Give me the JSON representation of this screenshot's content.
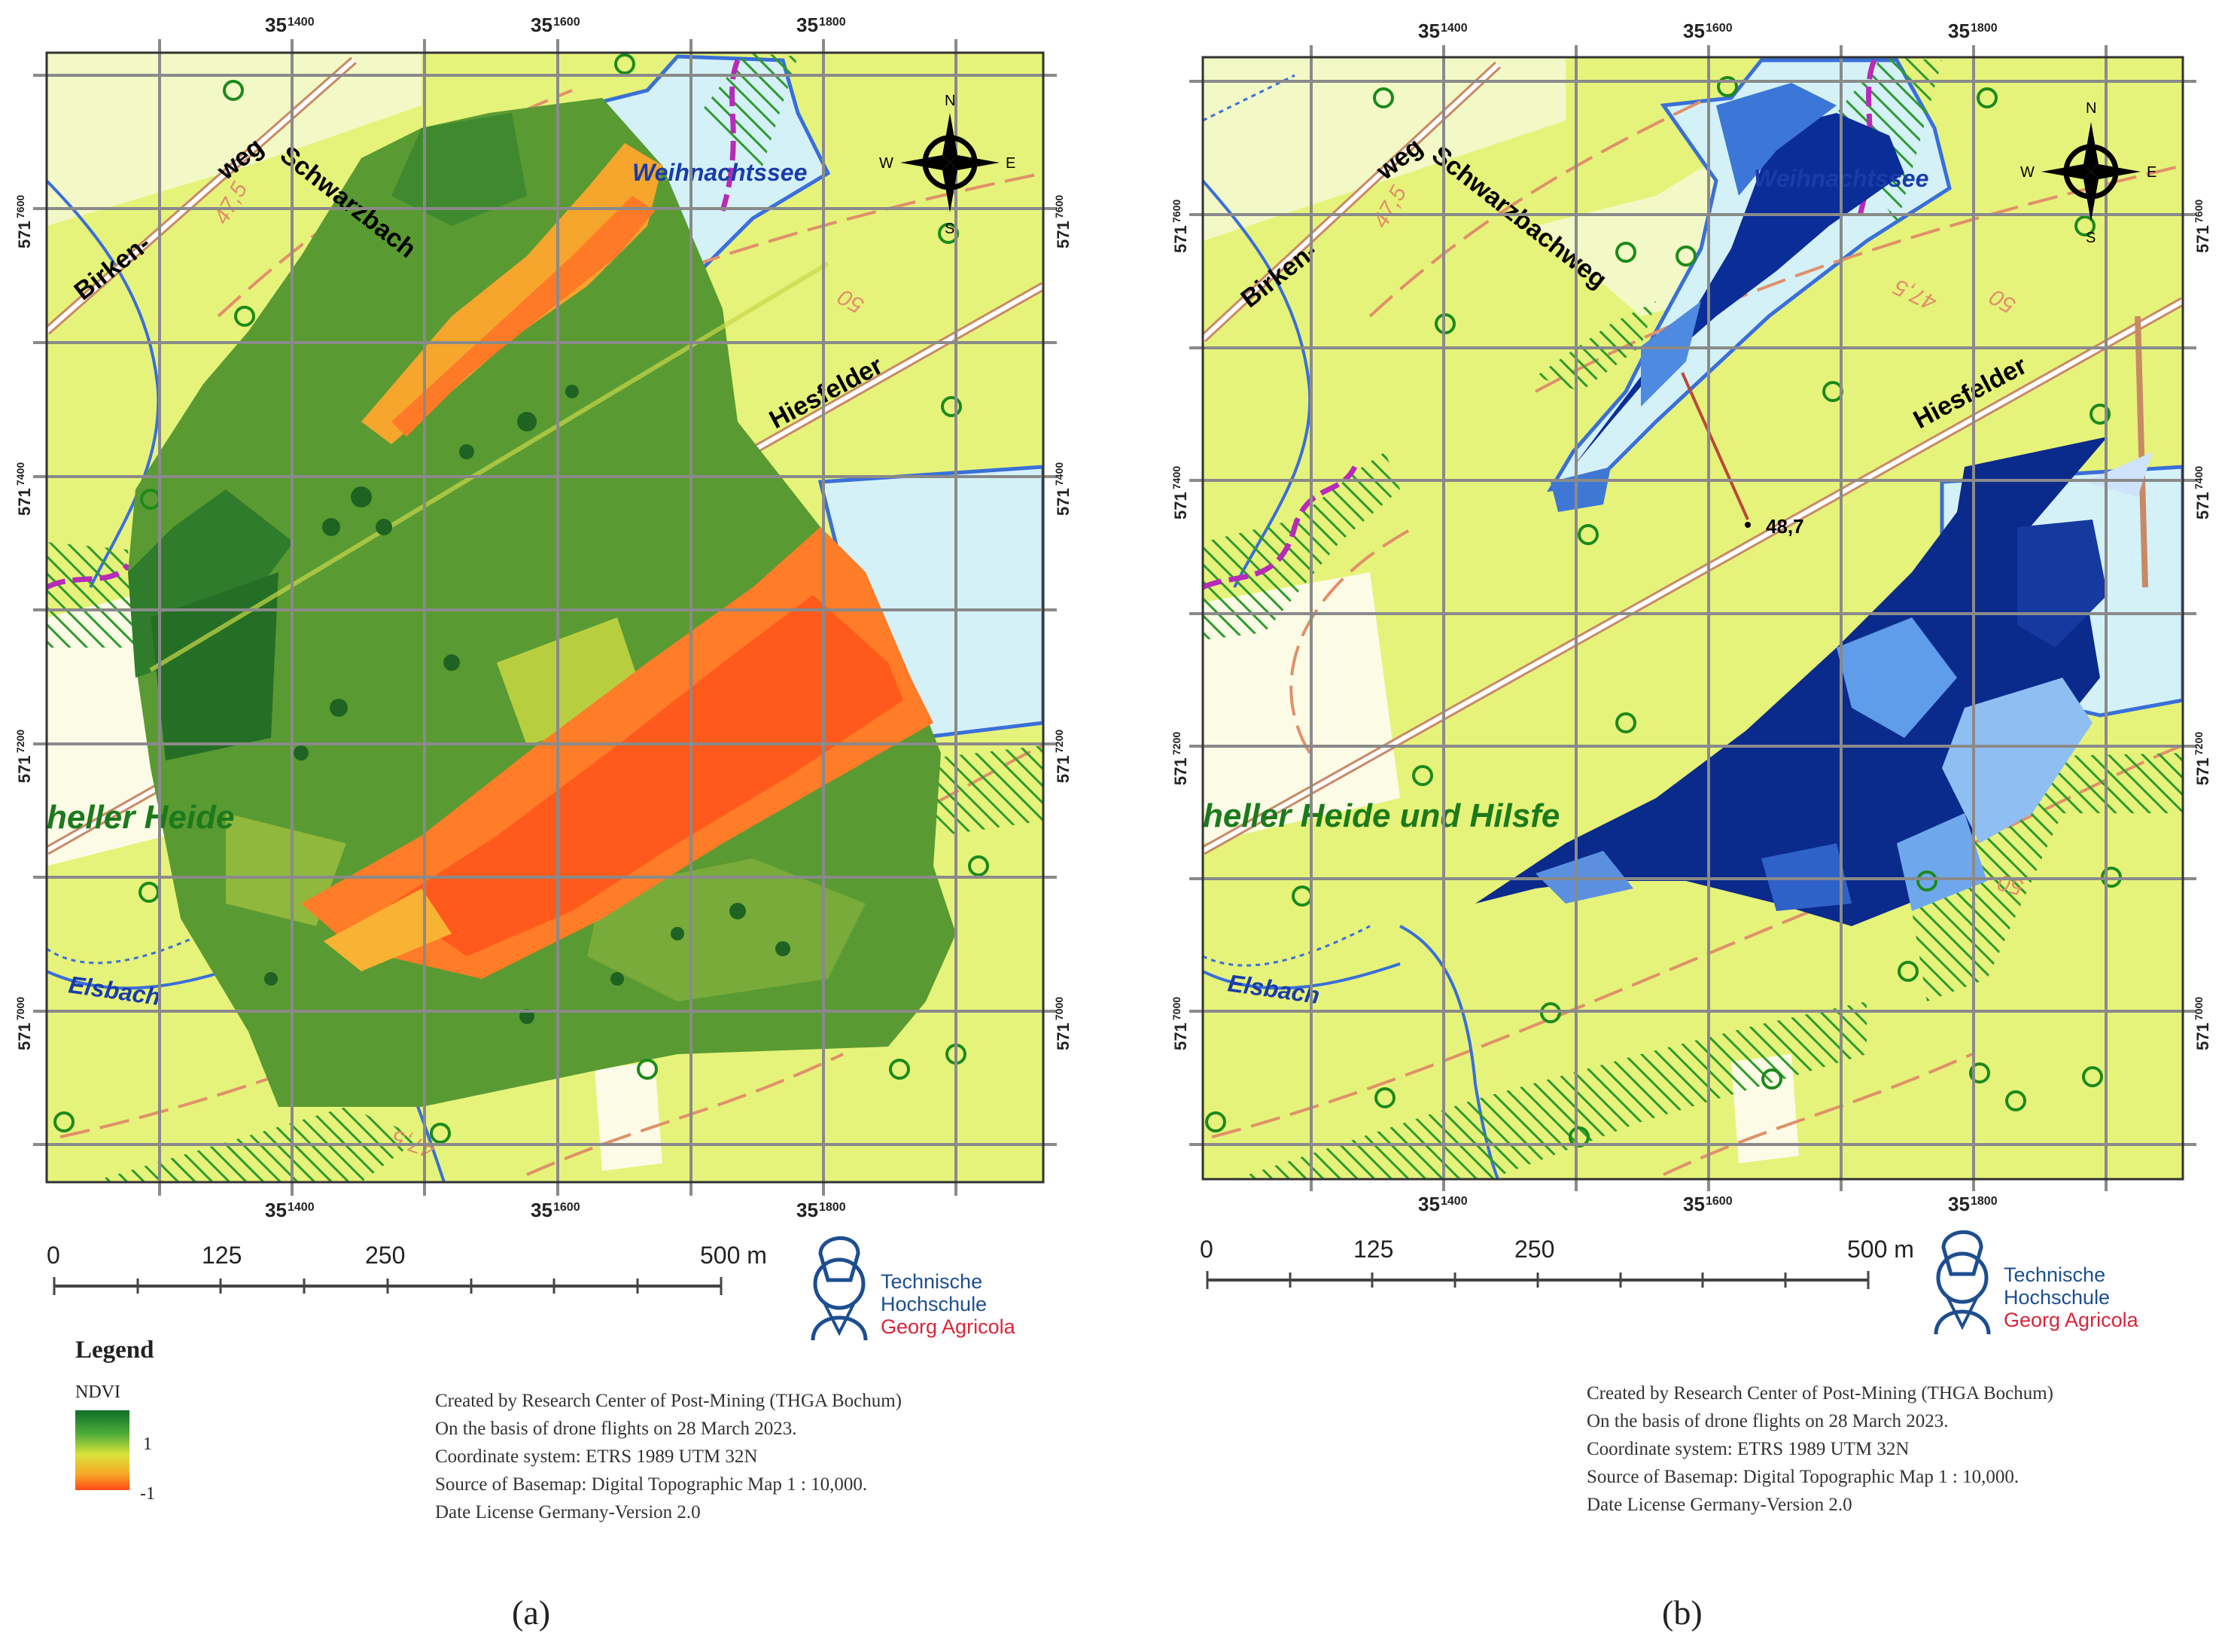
{
  "figure": {
    "panels": [
      {
        "id": "a",
        "caption": "(a)",
        "map": {
          "top_ticks": [
            "35",
            "35",
            "35"
          ],
          "top_tick_sup": [
            "1400",
            "1600",
            "1800"
          ],
          "side_ticks": [
            "571",
            "571",
            "571",
            "571"
          ],
          "side_tick_sup": [
            "7600",
            "7400",
            "7200",
            "7000"
          ],
          "labels": {
            "lake": "Weihnachtssee",
            "road1": "Birken-",
            "road1b": "weg",
            "road2": "Schwarzbach",
            "road3": "Hiesfelder",
            "reserve": "heller Heide",
            "stream": "Elsbach",
            "contour1": "47,5",
            "contour2": "50",
            "contour3": "47,5"
          },
          "compass": {
            "n": "N",
            "s": "S",
            "e": "E",
            "w": "W"
          }
        },
        "scalebar": {
          "labels": [
            "0",
            "125",
            "250",
            "500 m"
          ]
        },
        "logo": {
          "line1": "Technische",
          "line2": "Hochschule",
          "line3": "Georg Agricola"
        },
        "legend": {
          "title": "Legend",
          "variable": "NDVI",
          "max": "1",
          "min": "-1"
        },
        "credits": [
          "Created by Research Center of Post-Mining  (THGA Bochum)",
          "On the basis of drone flights  on 28 March 2023.",
          "Coordinate system: ETRS 1989 UTM 32N",
          "Source of Basemap: Digital Topographic Map 1 : 10,000.",
          "Date License Germany-Version 2.0"
        ]
      },
      {
        "id": "b",
        "caption": "(b)",
        "map": {
          "top_ticks": [
            "35",
            "35",
            "35"
          ],
          "top_tick_sup": [
            "1400",
            "1600",
            "1800"
          ],
          "side_ticks": [
            "571",
            "571",
            "571",
            "571"
          ],
          "side_tick_sup": [
            "7600",
            "7400",
            "7200",
            "7000"
          ],
          "labels": {
            "lake": "Weihnachtssee",
            "road1": "Birken-",
            "road1b": "weg",
            "road2": "Schwarzbachweg",
            "road3": "Hiesfelder",
            "reserve": "heller Heide und Hilsfe",
            "stream": "Elsbach",
            "spot_height": "48,7",
            "contour1": "47,5",
            "contour2": "50",
            "contour3": "47,5",
            "contour4": "50"
          },
          "compass": {
            "n": "N",
            "s": "S",
            "e": "E",
            "w": "W"
          }
        },
        "scalebar": {
          "labels": [
            "0",
            "125",
            "250",
            "500 m"
          ]
        },
        "logo": {
          "line1": "Technische",
          "line2": "Hochschule",
          "line3": "Georg Agricola"
        },
        "credits": [
          "Created by Research Center of Post-Mining  (THGA Bochum)",
          "On the basis of drone flights  on 28 March 2023.",
          "Coordinate system: ETRS 1989 UTM 32N",
          "Source of Basemap: Digital Topographic Map 1 : 10,000.",
          "Date License Germany-Version 2.0"
        ]
      }
    ]
  },
  "colors": {
    "basemap": "#e6f37a",
    "grid": "#8a8a8a",
    "water": "#d4f1f8",
    "water_edge": "#3a6fd8",
    "road_label": "#000000",
    "reserve_label": "#1c7a1c",
    "contour": "#e0906a",
    "ndvi_high": "#0f6e28",
    "ndvi_low": "#ff4a16",
    "water_index": "#08278a",
    "logo_blue": "#1d4e8f",
    "logo_red": "#d8253a"
  }
}
